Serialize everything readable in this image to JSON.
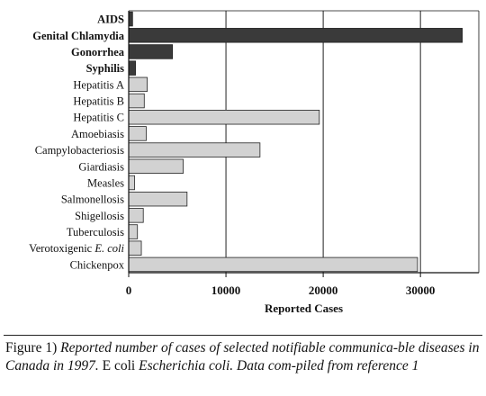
{
  "chart_data": {
    "type": "bar",
    "orientation": "horizontal",
    "categories": [
      "AIDS",
      "Genital Chlamydia",
      "Gonorrhea",
      "Syphilis",
      "Hepatitis A",
      "Hepatitis B",
      "Hepatitis C",
      "Amoebiasis",
      "Campylobacteriosis",
      "Giardiasis",
      "Measles",
      "Salmonellosis",
      "Shigellosis",
      "Tuberculosis",
      "Verotoxigenic E. coli",
      "Chickenpox"
    ],
    "bold_categories": [
      "AIDS",
      "Genital Chlamydia",
      "Gonorrhea",
      "Syphilis"
    ],
    "values": [
      400,
      34300,
      4500,
      700,
      1900,
      1600,
      19600,
      1800,
      13500,
      5600,
      600,
      6000,
      1500,
      900,
      1300,
      29700
    ],
    "colors": {
      "highlight": "#3a3a3a",
      "default": "#d2d2d2",
      "outline": "#222222"
    },
    "xlabel": "Reported Cases",
    "xticks": [
      "0",
      "10000",
      "20000",
      "30000"
    ],
    "xlim": [
      0,
      36000
    ],
    "grid": "vertical"
  },
  "caption": {
    "label": "Figure 1)",
    "text_before": "Reported number of cases of selected notifiable communica-ble diseases in Canada in 1997.",
    "ecoli_upright": "E coli",
    "ecoli_italic": "Escherichia coli.",
    "text_after": "Data com-piled from reference 1"
  }
}
